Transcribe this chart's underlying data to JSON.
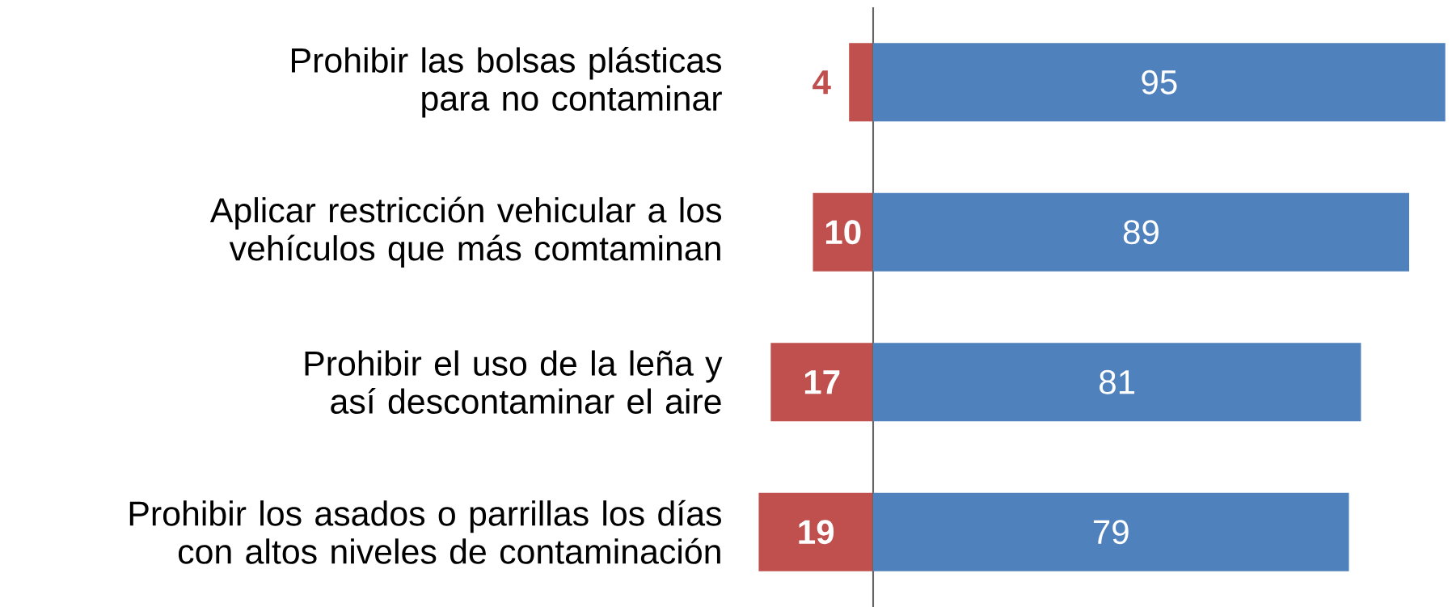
{
  "chart_data": [
    {
      "type": "bar",
      "orientation": "horizontal",
      "tick_labels": "y",
      "xlim": [
        19,
        0
      ],
      "categories": [
        "Prohibir las bolsas plásticas para no contaminar",
        "Aplicar restricción vehicular a los vehículos que más comtaminan",
        "Prohibir el uso de la leña y así descontaminar el aire",
        "Prohibir los asados o parrillas los días con altos niveles de contaminación"
      ],
      "series": [
        {
          "color": "#c0504d",
          "values": [
            4,
            10,
            17,
            19
          ],
          "value_labels": [
            "4",
            "10",
            "17",
            "19"
          ]
        }
      ]
    },
    {
      "type": "bar",
      "orientation": "horizontal",
      "tick_labels": false,
      "categories": [
        null,
        null,
        null,
        null
      ],
      "series": [
        {
          "color": "#4f81bd",
          "values": [
            95,
            89,
            81,
            79
          ],
          "value_labels": [
            "95",
            "89",
            "81",
            "79"
          ]
        }
      ]
    }
  ]
}
